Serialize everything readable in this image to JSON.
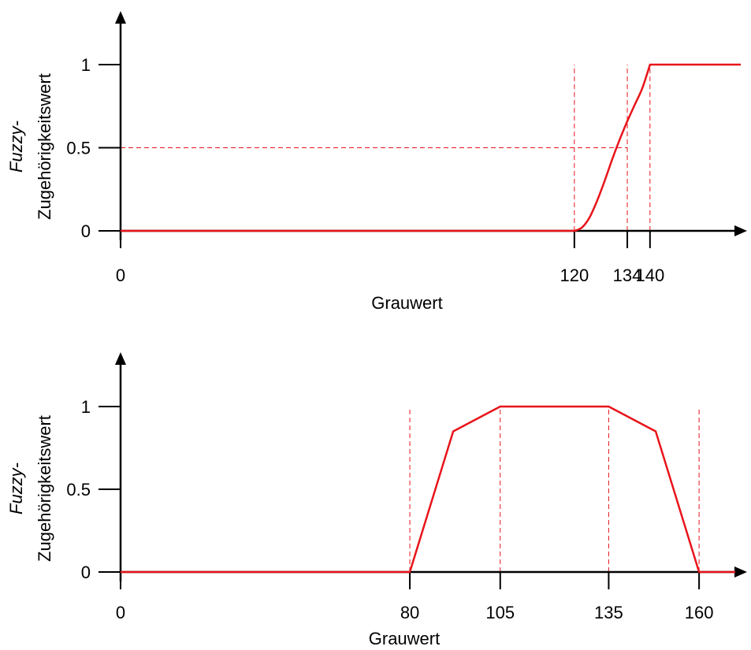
{
  "colors": {
    "curve": "#e8141a",
    "guide": "#e8141a",
    "axis": "#000000"
  },
  "chart_data": [
    {
      "type": "line",
      "xlabel": "Grauwert",
      "ylabel_line1": "Fuzzy-",
      "ylabel_line2": "Zugehörigkeitswert",
      "xlim": [
        0,
        164
      ],
      "ylim": [
        0,
        1
      ],
      "xticks": [
        0,
        120,
        134,
        140
      ],
      "yticks": [
        {
          "value": 0,
          "label": "0"
        },
        {
          "value": 0.5,
          "label": "0.5"
        },
        {
          "value": 1,
          "label": "1"
        }
      ],
      "series": [
        {
          "shape": "s-curve",
          "x": [
            0,
            120,
            122,
            124,
            126,
            128,
            130,
            132,
            134,
            136,
            138,
            140,
            164
          ],
          "y": [
            0,
            0,
            0.02,
            0.08,
            0.18,
            0.3,
            0.43,
            0.55,
            0.66,
            0.76,
            0.86,
            1,
            1
          ]
        }
      ],
      "guides_vertical": [
        120,
        134,
        140
      ],
      "guide_horizontal": {
        "x": 134,
        "y": 0.5
      }
    },
    {
      "type": "line",
      "xlabel": "Grauwert",
      "ylabel_line1": "Fuzzy-",
      "ylabel_line2": "Zugehörigkeitswert",
      "xlim": [
        0,
        170
      ],
      "ylim": [
        0,
        1
      ],
      "xticks": [
        0,
        80,
        105,
        135,
        160
      ],
      "yticks": [
        {
          "value": 0,
          "label": "0"
        },
        {
          "value": 0.5,
          "label": "0.5"
        },
        {
          "value": 1,
          "label": "1"
        }
      ],
      "series": [
        {
          "x": [
            0,
            80,
            92,
            105,
            135,
            148,
            160,
            170
          ],
          "y": [
            0,
            0,
            0.85,
            1,
            1,
            0.85,
            0,
            0
          ]
        }
      ],
      "guides_vertical": [
        80,
        105,
        135,
        160
      ]
    }
  ]
}
